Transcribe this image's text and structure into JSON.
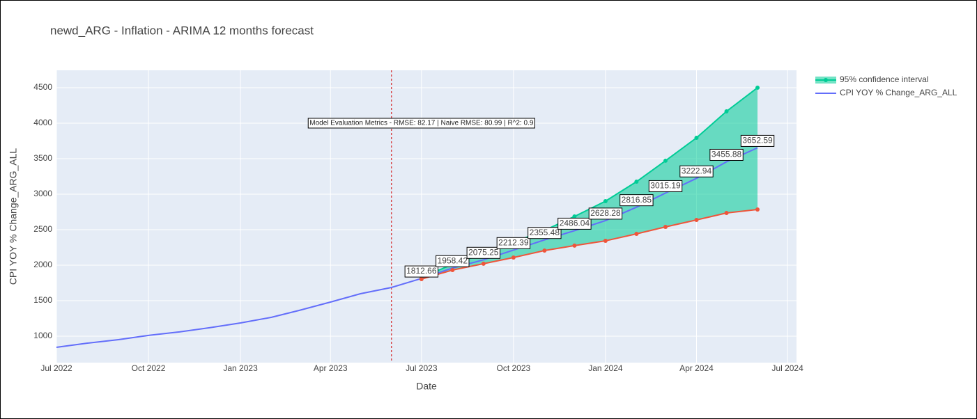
{
  "chart_data": {
    "type": "line",
    "title": "newd_ARG - Inflation - ARIMA 12 months forecast",
    "x_label": "Date",
    "y_label": "CPI YOY % Change_ARG_ALL",
    "x": [
      "2022-07",
      "2022-08",
      "2022-09",
      "2022-10",
      "2022-11",
      "2022-12",
      "2023-01",
      "2023-02",
      "2023-03",
      "2023-04",
      "2023-05",
      "2023-06",
      "2023-07",
      "2023-08",
      "2023-09",
      "2023-10",
      "2023-11",
      "2023-12",
      "2024-01",
      "2024-02",
      "2024-03",
      "2024-04",
      "2024-05",
      "2024-06"
    ],
    "series": [
      {
        "name": "CPI YOY % Change_ARG_ALL",
        "color": "#636efa",
        "values": [
          843,
          902,
          951,
          1010,
          1059,
          1118,
          1186,
          1265,
          1363,
          1480,
          1598,
          1686,
          1812.66,
          1958.42,
          2075.25,
          2212.39,
          2355.48,
          2486.04,
          2628.28,
          2816.85,
          3015.19,
          3222.94,
          3455.88,
          3652.59
        ]
      },
      {
        "name": "95% confidence interval",
        "color": "#00cc96",
        "markers": true,
        "fill_color": "rgba(0,204,150,0.55)",
        "values": [
          null,
          null,
          null,
          null,
          null,
          null,
          null,
          null,
          null,
          null,
          null,
          null,
          1830,
          2010,
          2160,
          2320,
          2490,
          2686,
          2902,
          3176,
          3471,
          3794,
          4167,
          4500
        ]
      },
      {
        "color": "#ef553b",
        "markers": true,
        "fill_to_previous": true,
        "values": [
          null,
          null,
          null,
          null,
          null,
          null,
          null,
          null,
          null,
          null,
          null,
          null,
          1804,
          1931,
          2020,
          2108,
          2206,
          2275,
          2343,
          2441,
          2539,
          2637,
          2735,
          2784
        ]
      }
    ],
    "forecast_start": "2023-06",
    "forecast_line_color": "#d62728",
    "annotation": {
      "text": "Model Evaluation Metrics - RMSE: 82.17 | Naive RMSE: 80.99 | R^2: 0.9",
      "x": "2023-07",
      "y": 4000
    },
    "xlim": [
      "2022-07-01",
      "2024-07-10"
    ],
    "xticks": [
      {
        "value": "2022-07",
        "label": "Jul 2022"
      },
      {
        "value": "2022-10",
        "label": "Oct 2022"
      },
      {
        "value": "2023-01",
        "label": "Jan 2023"
      },
      {
        "value": "2023-04",
        "label": "Apr 2023"
      },
      {
        "value": "2023-07",
        "label": "Jul 2023"
      },
      {
        "value": "2023-10",
        "label": "Oct 2023"
      },
      {
        "value": "2024-01",
        "label": "Jan 2024"
      },
      {
        "value": "2024-04",
        "label": "Apr 2024"
      },
      {
        "value": "2024-07",
        "label": "Jul 2024"
      }
    ],
    "ylim": [
      627,
      4745
    ],
    "yticks": [
      1000,
      1500,
      2000,
      2500,
      3000,
      3500,
      4000,
      4500
    ],
    "grid": true,
    "legend": "right"
  }
}
